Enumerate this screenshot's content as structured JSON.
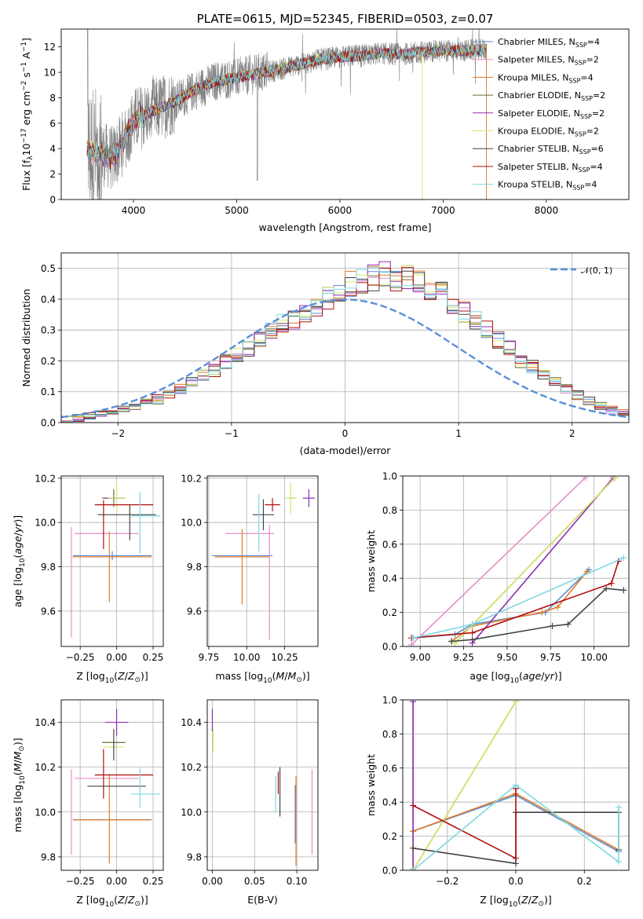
{
  "colors": {
    "Chabrier MILES": "#5b8fd6",
    "Salpeter MILES": "#e38fc7",
    "Kroupa MILES": "#e07b2a",
    "Chabrier ELODIE": "#6b6b3a",
    "Salpeter ELODIE": "#8c2fb0",
    "Kroupa ELODIE": "#d8e86a",
    "Chabrier STELIB": "#444444",
    "Salpeter STELIB": "#b01010",
    "Kroupa STELIB": "#7fd8e0"
  },
  "chart_data": [
    {
      "id": "spectrum",
      "type": "line",
      "title": "PLATE=0615, MJD=52345, FIBERID=0503, z=0.07",
      "xlabel": "wavelength [Angstrom, rest frame]",
      "ylabel": "Flux [f_λ10^-17 erg cm^-2 s^-1 A^-1]",
      "ylabel_parts": {
        "a": "Flux [f",
        "b": "λ",
        "c": "10",
        "d": "−17",
        "e": " erg cm",
        "f": "−2",
        "g": " s",
        "h": "−1",
        "i": " A",
        "j": "−1",
        "k": "]"
      },
      "xlim": [
        3300,
        8800
      ],
      "ylim": [
        0,
        13.4
      ],
      "xticks": [
        4000,
        5000,
        6000,
        7000,
        8000
      ],
      "yticks": [
        0,
        2,
        4,
        6,
        8,
        10,
        12
      ],
      "grid": false,
      "legend_position": "lower-right",
      "data_x_range": [
        3550,
        7420
      ],
      "legend": [
        {
          "name": "Chabrier MILES",
          "label": "Chabrier MILES, N",
          "sub": "SSP",
          "eq": "=4"
        },
        {
          "name": "Salpeter MILES",
          "label": "Salpeter MILES, N",
          "sub": "SSP",
          "eq": "=2"
        },
        {
          "name": "Kroupa MILES",
          "label": "Kroupa MILES, N",
          "sub": "SSP",
          "eq": "=4"
        },
        {
          "name": "Chabrier ELODIE",
          "label": "Chabrier ELODIE, N",
          "sub": "SSP",
          "eq": "=2"
        },
        {
          "name": "Salpeter ELODIE",
          "label": "Salpeter ELODIE, N",
          "sub": "SSP",
          "eq": "=2"
        },
        {
          "name": "Kroupa ELODIE",
          "label": "Kroupa ELODIE, N",
          "sub": "SSP",
          "eq": "=2"
        },
        {
          "name": "Chabrier STELIB",
          "label": "Chabrier STELIB, N",
          "sub": "SSP",
          "eq": "=6"
        },
        {
          "name": "Salpeter STELIB",
          "label": "Salpeter STELIB, N",
          "sub": "SSP",
          "eq": "=4"
        },
        {
          "name": "Kroupa STELIB",
          "label": "Kroupa STELIB, N",
          "sub": "SSP",
          "eq": "=4"
        }
      ],
      "continuum": [
        [
          3550,
          3.8
        ],
        [
          3700,
          3.6
        ],
        [
          3800,
          3.2
        ],
        [
          3900,
          4.5
        ],
        [
          4000,
          6.2
        ],
        [
          4200,
          7.0
        ],
        [
          4400,
          7.7
        ],
        [
          4600,
          8.6
        ],
        [
          4800,
          9.3
        ],
        [
          5000,
          9.6
        ],
        [
          5200,
          9.9
        ],
        [
          5400,
          10.2
        ],
        [
          5600,
          10.6
        ],
        [
          5800,
          11.0
        ],
        [
          6000,
          11.2
        ],
        [
          6200,
          11.3
        ],
        [
          6400,
          11.5
        ],
        [
          6600,
          11.4
        ],
        [
          6800,
          11.6
        ],
        [
          7000,
          11.7
        ],
        [
          7200,
          11.7
        ],
        [
          7420,
          11.8
        ]
      ]
    },
    {
      "id": "residuals",
      "type": "histogram",
      "xlabel": "(data-model)/error",
      "ylabel": "Normed distribution",
      "xlim": [
        -2.5,
        2.5
      ],
      "ylim": [
        0,
        0.55
      ],
      "xticks": [
        -2,
        -1,
        0,
        1,
        2
      ],
      "yticks": [
        0.0,
        0.1,
        0.2,
        0.3,
        0.4,
        0.5
      ],
      "grid": true,
      "legend_position": "top-right",
      "gaussian_label": "𝒩(0, 1)",
      "gaussian_color": "#5b8fd6",
      "bin_edges_start": -2.5,
      "bin_width": 0.1,
      "envelope": [
        0.01,
        0.015,
        0.02,
        0.03,
        0.035,
        0.045,
        0.055,
        0.065,
        0.075,
        0.09,
        0.11,
        0.13,
        0.15,
        0.17,
        0.2,
        0.22,
        0.24,
        0.27,
        0.3,
        0.32,
        0.33,
        0.35,
        0.37,
        0.4,
        0.42,
        0.45,
        0.46,
        0.47,
        0.48,
        0.47,
        0.47,
        0.46,
        0.44,
        0.42,
        0.39,
        0.36,
        0.33,
        0.3,
        0.27,
        0.24,
        0.2,
        0.18,
        0.15,
        0.13,
        0.11,
        0.09,
        0.07,
        0.055,
        0.04,
        0.03
      ]
    },
    {
      "id": "age-vs-Z",
      "type": "errorbar",
      "xlabel": "Z [log10(Z/Z⊙)]",
      "ylabel": "age [log10(age/yr)]",
      "xlim": [
        -0.38,
        0.32
      ],
      "ylim": [
        9.44,
        10.21
      ],
      "xticks": [
        -0.25,
        0.0,
        0.25
      ],
      "yticks": [
        9.6,
        9.8,
        10.0,
        10.2
      ],
      "grid": true,
      "points": [
        {
          "series": "Chabrier MILES",
          "x": -0.03,
          "xerr": 0.27,
          "y": 9.85,
          "yerr": 0.02
        },
        {
          "series": "Salpeter MILES",
          "x": -0.07,
          "xerr": 0.22,
          "y": 9.95,
          "yerr": 0.0
        },
        {
          "series": "Salpeter MILES",
          "x": -0.31,
          "xerr": 0.0,
          "y": 9.73,
          "yerr": 0.25
        },
        {
          "series": "Kroupa MILES",
          "x": -0.03,
          "xerr": 0.27,
          "y": 9.845,
          "yerr": 0.0
        },
        {
          "series": "Kroupa MILES",
          "x": -0.05,
          "xerr": 0.0,
          "y": 9.8,
          "yerr": 0.16
        },
        {
          "series": "Chabrier ELODIE",
          "x": -0.02,
          "xerr": 0.08,
          "y": 10.11,
          "yerr": 0.04
        },
        {
          "series": "Salpeter ELODIE",
          "x": -0.02,
          "xerr": 0.07,
          "y": 10.11,
          "yerr": 0.0
        },
        {
          "series": "Kroupa ELODIE",
          "x": 0.0,
          "xerr": 0.06,
          "y": 10.11,
          "yerr": 0.07
        },
        {
          "series": "Chabrier STELIB",
          "x": 0.07,
          "xerr": 0.2,
          "y": 10.035,
          "yerr": 0.0
        },
        {
          "series": "Chabrier STELIB",
          "x": 0.09,
          "xerr": 0.0,
          "y": 10.0,
          "yerr": 0.08
        },
        {
          "series": "Salpeter STELIB",
          "x": 0.05,
          "xerr": 0.2,
          "y": 10.08,
          "yerr": 0.0
        },
        {
          "series": "Salpeter STELIB",
          "x": -0.09,
          "xerr": 0.0,
          "y": 9.99,
          "yerr": 0.11
        },
        {
          "series": "Kroupa STELIB",
          "x": 0.2,
          "xerr": 0.1,
          "y": 10.03,
          "yerr": 0.0
        },
        {
          "series": "Kroupa STELIB",
          "x": 0.16,
          "xerr": 0.0,
          "y": 10.0,
          "yerr": 0.14
        }
      ]
    },
    {
      "id": "age-vs-mass",
      "type": "errorbar",
      "xlabel": "mass [log10(M/M⊙)]",
      "xlim": [
        9.74,
        10.47
      ],
      "ylim": [
        9.44,
        10.21
      ],
      "xticks": [
        9.75,
        10.0,
        10.25
      ],
      "yticks": [
        9.6,
        9.8,
        10.0,
        10.2
      ],
      "grid": true,
      "points": [
        {
          "series": "Chabrier MILES",
          "x": 9.97,
          "xerr": 0.2,
          "y": 9.85,
          "yerr": 0.0
        },
        {
          "series": "Salpeter MILES",
          "x": 10.15,
          "xerr": 0.0,
          "y": 9.73,
          "yerr": 0.26
        },
        {
          "series": "Salpeter MILES",
          "x": 10.02,
          "xerr": 0.16,
          "y": 9.95,
          "yerr": 0.0
        },
        {
          "series": "Kroupa MILES",
          "x": 9.97,
          "xerr": 0.18,
          "y": 9.845,
          "yerr": 0.0
        },
        {
          "series": "Kroupa MILES",
          "x": 9.97,
          "xerr": 0.0,
          "y": 9.8,
          "yerr": 0.17
        },
        {
          "series": "Chabrier ELODIE",
          "x": 10.3,
          "xerr": 0.02,
          "y": 10.11,
          "yerr": 0.0
        },
        {
          "series": "Salpeter ELODIE",
          "x": 10.41,
          "xerr": 0.04,
          "y": 10.11,
          "yerr": 0.04
        },
        {
          "series": "Kroupa ELODIE",
          "x": 10.29,
          "xerr": 0.04,
          "y": 10.11,
          "yerr": 0.07
        },
        {
          "series": "Chabrier STELIB",
          "x": 10.11,
          "xerr": 0.07,
          "y": 10.035,
          "yerr": 0.07
        },
        {
          "series": "Salpeter STELIB",
          "x": 10.17,
          "xerr": 0.05,
          "y": 10.08,
          "yerr": 0.03
        },
        {
          "series": "Kroupa STELIB",
          "x": 10.08,
          "xerr": 0.0,
          "y": 10.0,
          "yerr": 0.13
        }
      ]
    },
    {
      "id": "weight-vs-age",
      "type": "line",
      "xlabel": "age [log10(age/yr)]",
      "ylabel": "mass weight",
      "xlim": [
        8.9,
        10.2
      ],
      "ylim": [
        0,
        1
      ],
      "xticks": [
        9.0,
        9.25,
        9.5,
        9.75,
        10.0
      ],
      "yticks": [
        0.0,
        0.2,
        0.4,
        0.6,
        0.8,
        1.0
      ],
      "grid": true,
      "series": [
        {
          "name": "Chabrier MILES",
          "x": [
            8.96,
            9.2,
            9.3,
            9.72,
            9.97
          ],
          "y": [
            0.05,
            0.07,
            0.13,
            0.2,
            0.45
          ]
        },
        {
          "name": "Salpeter MILES",
          "x": [
            8.95,
            9.95
          ],
          "y": [
            0.01,
            0.99
          ]
        },
        {
          "name": "Kroupa MILES",
          "x": [
            9.18,
            9.3,
            9.7,
            9.79,
            9.96
          ],
          "y": [
            0.03,
            0.12,
            0.2,
            0.23,
            0.44
          ]
        },
        {
          "name": "Chabrier ELODIE",
          "x": [
            9.2,
            10.12
          ],
          "y": [
            0.02,
            0.99
          ]
        },
        {
          "name": "Salpeter ELODIE",
          "x": [
            9.3,
            10.11
          ],
          "y": [
            0.02,
            0.99
          ]
        },
        {
          "name": "Kroupa ELODIE",
          "x": [
            9.2,
            10.12
          ],
          "y": [
            0.02,
            0.99
          ]
        },
        {
          "name": "Chabrier STELIB",
          "x": [
            9.18,
            9.3,
            9.76,
            9.85,
            10.07,
            10.17
          ],
          "y": [
            0.03,
            0.04,
            0.12,
            0.13,
            0.34,
            0.33
          ]
        },
        {
          "name": "Salpeter STELIB",
          "x": [
            8.95,
            9.3,
            10.1,
            10.14
          ],
          "y": [
            0.05,
            0.08,
            0.37,
            0.5
          ]
        },
        {
          "name": "Kroupa STELIB",
          "x": [
            8.96,
            9.3,
            10.17
          ],
          "y": [
            0.05,
            0.13,
            0.52
          ]
        }
      ]
    },
    {
      "id": "mass-vs-Z",
      "type": "errorbar",
      "xlabel": "Z [log10(Z/Z⊙)]",
      "ylabel": "mass [log10(M/M⊙)]",
      "xlim": [
        -0.38,
        0.32
      ],
      "ylim": [
        9.74,
        10.5
      ],
      "xticks": [
        -0.25,
        0.0,
        0.25
      ],
      "yticks": [
        9.8,
        10.0,
        10.2,
        10.4
      ],
      "grid": true,
      "points": [
        {
          "series": "Chabrier MILES",
          "x": -0.03,
          "xerr": 0.27,
          "y": 9.965,
          "yerr": 0.0
        },
        {
          "series": "Salpeter MILES",
          "x": -0.07,
          "xerr": 0.22,
          "y": 10.15,
          "yerr": 0.0
        },
        {
          "series": "Salpeter MILES",
          "x": -0.31,
          "xerr": 0.0,
          "y": 10.0,
          "yerr": 0.19
        },
        {
          "series": "Kroupa MILES",
          "x": -0.03,
          "xerr": 0.27,
          "y": 9.965,
          "yerr": 0.0
        },
        {
          "series": "Kroupa MILES",
          "x": -0.05,
          "xerr": 0.0,
          "y": 9.97,
          "yerr": 0.2
        },
        {
          "series": "Chabrier ELODIE",
          "x": -0.02,
          "xerr": 0.08,
          "y": 10.31,
          "yerr": 0.0
        },
        {
          "series": "Salpeter ELODIE",
          "x": 0.0,
          "xerr": 0.08,
          "y": 10.4,
          "yerr": 0.06
        },
        {
          "series": "Kroupa ELODIE",
          "x": -0.02,
          "xerr": 0.07,
          "y": 10.29,
          "yerr": 0.0
        },
        {
          "series": "Chabrier STELIB",
          "x": 0.0,
          "xerr": 0.2,
          "y": 10.115,
          "yerr": 0.0
        },
        {
          "series": "Chabrier STELIB",
          "x": -0.02,
          "xerr": 0.0,
          "y": 10.3,
          "yerr": 0.07
        },
        {
          "series": "Salpeter STELIB",
          "x": 0.05,
          "xerr": 0.2,
          "y": 10.165,
          "yerr": 0.0
        },
        {
          "series": "Salpeter STELIB",
          "x": -0.09,
          "xerr": 0.0,
          "y": 10.17,
          "yerr": 0.11
        },
        {
          "series": "Kroupa STELIB",
          "x": 0.2,
          "xerr": 0.1,
          "y": 10.08,
          "yerr": 0.0
        },
        {
          "series": "Kroupa STELIB",
          "x": 0.16,
          "xerr": 0.0,
          "y": 10.11,
          "yerr": 0.09
        }
      ]
    },
    {
      "id": "mass-vs-ebv",
      "type": "errorbar",
      "xlabel": "E(B-V)",
      "xlim": [
        -0.006,
        0.125
      ],
      "ylim": [
        9.74,
        10.5
      ],
      "xticks": [
        0.0,
        0.05,
        0.1
      ],
      "yticks": [
        9.8,
        10.0,
        10.2,
        10.4
      ],
      "grid": true,
      "points": [
        {
          "series": "Salpeter ELODIE",
          "x": 0.0,
          "xerr": 0.0,
          "y": 10.41,
          "yerr": 0.05
        },
        {
          "series": "Kroupa ELODIE",
          "x": 0.001,
          "xerr": 0.0,
          "y": 10.32,
          "yerr": 0.05
        },
        {
          "series": "Kroupa STELIB",
          "x": 0.075,
          "xerr": 0.0,
          "y": 10.08,
          "yerr": 0.08
        },
        {
          "series": "Salpeter STELIB",
          "x": 0.078,
          "xerr": 0.0,
          "y": 10.13,
          "yerr": 0.05
        },
        {
          "series": "Chabrier STELIB",
          "x": 0.08,
          "xerr": 0.0,
          "y": 10.09,
          "yerr": 0.11
        },
        {
          "series": "Chabrier MILES",
          "x": 0.098,
          "xerr": 0.0,
          "y": 9.99,
          "yerr": 0.13
        },
        {
          "series": "Kroupa MILES",
          "x": 0.099,
          "xerr": 0.0,
          "y": 9.96,
          "yerr": 0.2
        },
        {
          "series": "Salpeter MILES",
          "x": 0.118,
          "xerr": 0.0,
          "y": 10.0,
          "yerr": 0.19
        }
      ]
    },
    {
      "id": "weight-vs-Z",
      "type": "line",
      "xlabel": "Z [log10(Z/Z⊙)]",
      "ylabel": "mass weight",
      "xlim": [
        -0.33,
        0.33
      ],
      "ylim": [
        0,
        1
      ],
      "xticks": [
        -0.2,
        0.0,
        0.2
      ],
      "yticks": [
        0.0,
        0.2,
        0.4,
        0.6,
        0.8,
        1.0
      ],
      "grid": true,
      "series": [
        {
          "name": "Chabrier MILES",
          "x": [
            -0.3,
            0.0,
            0.3
          ],
          "y": [
            0.23,
            0.44,
            0.11
          ]
        },
        {
          "name": "Salpeter MILES",
          "x": [
            -0.3,
            -0.3
          ],
          "y": [
            0.01,
            0.99
          ]
        },
        {
          "name": "Kroupa MILES",
          "x": [
            -0.3,
            0.0,
            0.3
          ],
          "y": [
            0.23,
            0.45,
            0.12
          ]
        },
        {
          "name": "Chabrier ELODIE",
          "x": [
            -0.3,
            0.0
          ],
          "y": [
            0.0,
            0.99
          ]
        },
        {
          "name": "Salpeter ELODIE",
          "x": [
            -0.3,
            -0.3
          ],
          "y": [
            0.0,
            0.99
          ]
        },
        {
          "name": "Kroupa ELODIE",
          "x": [
            -0.3,
            0.0
          ],
          "y": [
            0.0,
            0.99
          ]
        },
        {
          "name": "Chabrier STELIB",
          "x": [
            -0.3,
            0.0,
            0.0,
            0.3,
            0.3
          ],
          "y": [
            0.13,
            0.04,
            0.34,
            0.34,
            0.12
          ]
        },
        {
          "name": "Salpeter STELIB",
          "x": [
            -0.3,
            0.0,
            0.0
          ],
          "y": [
            0.38,
            0.07,
            0.48
          ]
        },
        {
          "name": "Kroupa STELIB",
          "x": [
            -0.3,
            0.0,
            0.3,
            0.3
          ],
          "y": [
            0.0,
            0.5,
            0.05,
            0.37
          ]
        }
      ]
    }
  ]
}
